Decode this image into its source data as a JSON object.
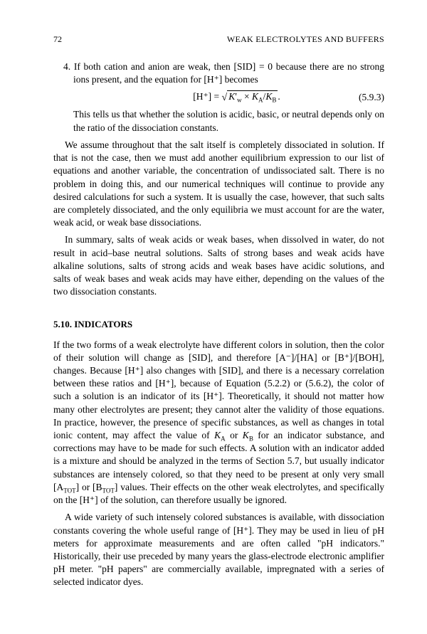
{
  "page_number": "72",
  "chapter_title": "WEAK ELECTROLYTES AND BUFFERS",
  "item4_text": "4. If both cation and anion are weak, then [SID] = 0 because there are no strong ions present, and the equation for [H⁺] becomes",
  "equation": {
    "lhs": "[H⁺]  =  ",
    "under_sqrt_html": "<i>K</i>′<sub>w</sub> × <i>K</i><sub>A</sub>/<i>K</i><sub>B</sub>",
    "number": "(5.9.3)"
  },
  "after_eq": "This tells us that whether the solution is acidic, basic, or neutral depends only on the ratio of the dissociation constants.",
  "para1": "We assume throughout that the salt itself is completely dissociated in solution. If that is not the case, then we must add another equilibrium expression to our list of equations and another variable, the concentration of undissociated salt. There is no problem in doing this, and our numerical techniques will continue to provide any desired calculations for such a system. It is usually the case, however, that such salts are completely dissociated, and the only equilibria we must account for are the water, weak acid, or weak base dissociations.",
  "para2": "In summary, salts of weak acids or weak bases, when dissolved in water, do not result in acid–base neutral solutions. Salts of strong bases and weak acids have alkaline solutions, salts of strong acids and weak bases have acidic solutions, and salts of weak bases and weak acids may have either, depending on the values of the two dissociation constants.",
  "section_heading": "5.10. INDICATORS",
  "para3": "If the two forms of a weak electrolyte have different colors in solution, then the color of their solution will change as [SID], and therefore [A⁻]/[HA] or [B⁺]/[BOH], changes. Because [H⁺] also changes with [SID], and there is a necessary correlation between these ratios and [H⁺], because of Equation (5.2.2) or (5.6.2), the color of such a solution is an indicator of its [H⁺]. Theoretically, it should not matter how many other electrolytes are present; they cannot alter the validity of those equations. In practice, however, the presence of specific substances, as well as changes in total ionic content, may affect the value of KA or KB for an indicator substance, and corrections may have to be made for such effects. A solution with an indicator added is a mixture and should be analyzed in the terms of Section 5.7, but usually indicator substances are intensely colored, so that they need to be present at only very small [ATOT] or [BTOT] values. Their effects on the other weak electrolytes, and specifically on the [H⁺] of the solution, can therefore usually be ignored.",
  "para4": "A wide variety of such intensely colored substances is available, with dissociation constants covering the whole useful range of [H⁺]. They may be used in lieu of pH meters for approximate measurements and are often called \"pH indicators.\" Historically, their use preceded by many years the glass-electrode electronic amplifier pH meter. \"pH papers\" are commercially available, impregnated with a series of selected indicator dyes."
}
